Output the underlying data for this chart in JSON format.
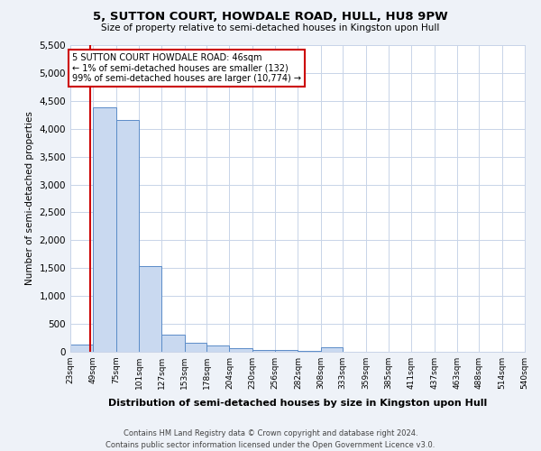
{
  "title": "5, SUTTON COURT, HOWDALE ROAD, HULL, HU8 9PW",
  "subtitle": "Size of property relative to semi-detached houses in Kingston upon Hull",
  "xlabel": "Distribution of semi-detached houses by size in Kingston upon Hull",
  "ylabel": "Number of semi-detached properties",
  "footnote": "Contains HM Land Registry data © Crown copyright and database right 2024.\nContains public sector information licensed under the Open Government Licence v3.0.",
  "annotation_title": "5 SUTTON COURT HOWDALE ROAD: 46sqm",
  "annotation_line1": "← 1% of semi-detached houses are smaller (132)",
  "annotation_line2": "99% of semi-detached houses are larger (10,774) →",
  "property_sqm": 46,
  "bar_color": "#c9d9f0",
  "bar_edge_color": "#5b8cc8",
  "property_line_color": "#cc0000",
  "annotation_box_color": "#ffffff",
  "annotation_box_edge": "#cc0000",
  "bins": [
    23,
    49,
    75,
    101,
    127,
    153,
    178,
    204,
    230,
    256,
    282,
    308,
    333,
    359,
    385,
    411,
    437,
    463,
    488,
    514,
    540
  ],
  "counts": [
    130,
    4390,
    4150,
    1540,
    310,
    160,
    110,
    60,
    40,
    25,
    10,
    80,
    5,
    3,
    2,
    1,
    1,
    1,
    1,
    1
  ],
  "ylim": [
    0,
    5500
  ],
  "yticks": [
    0,
    500,
    1000,
    1500,
    2000,
    2500,
    3000,
    3500,
    4000,
    4500,
    5000,
    5500
  ],
  "background_color": "#eef2f8",
  "plot_bg_color": "#ffffff",
  "grid_color": "#c8d4e8"
}
